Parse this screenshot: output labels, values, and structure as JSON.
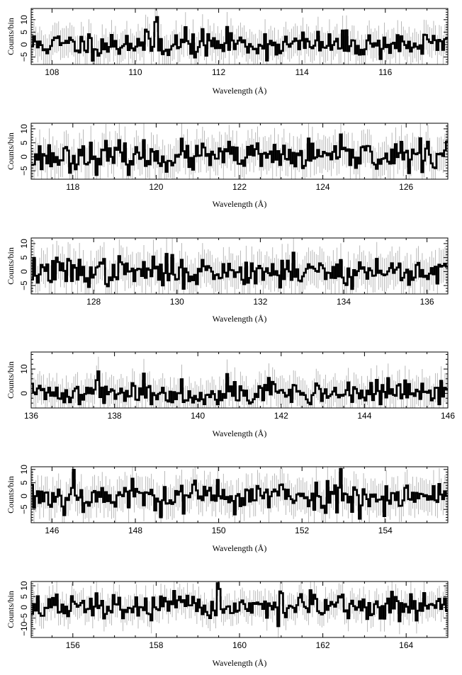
{
  "chart_data": [
    {
      "type": "line",
      "xlabel": "Wavelength (Å)",
      "ylabel": "Counts/bin",
      "xlim": [
        107.5,
        117.5
      ],
      "ylim": [
        -8,
        14.5
      ],
      "xticks": [
        108,
        110,
        112,
        114,
        116
      ],
      "yticks": [
        -5,
        0,
        5,
        10
      ],
      "ytick_labels": [
        "−5",
        "0",
        "5",
        "10"
      ],
      "seed": 11,
      "noise_sd": 2.6,
      "peaks": [
        [
          110.5,
          9
        ],
        [
          109.8,
          6
        ],
        [
          111.2,
          5
        ],
        [
          112.3,
          7
        ],
        [
          117.3,
          4
        ]
      ],
      "error_bar": 6
    },
    {
      "type": "line",
      "xlabel": "Wavelength (Å)",
      "ylabel": "Counts/bin",
      "xlim": [
        117,
        127
      ],
      "ylim": [
        -8,
        12
      ],
      "xticks": [
        118,
        120,
        122,
        124,
        126
      ],
      "yticks": [
        -5,
        0,
        5,
        10
      ],
      "ytick_labels": [
        "−5",
        "0",
        "5",
        "10"
      ],
      "seed": 23,
      "noise_sd": 2.6,
      "peaks": [
        [
          118.2,
          6
        ],
        [
          125.1,
          6
        ],
        [
          126.5,
          4
        ]
      ],
      "error_bar": 6
    },
    {
      "type": "line",
      "xlabel": "Wavelength (Å)",
      "ylabel": "Counts/bin",
      "xlim": [
        126.5,
        136.5
      ],
      "ylim": [
        -8,
        12
      ],
      "xticks": [
        128,
        130,
        132,
        134,
        136
      ],
      "yticks": [
        -5,
        0,
        5,
        10
      ],
      "ytick_labels": [
        "−5",
        "0",
        "5",
        "10"
      ],
      "seed": 37,
      "noise_sd": 2.6,
      "peaks": [
        [
          131.8,
          7
        ],
        [
          132.8,
          5
        ]
      ],
      "error_bar": 6
    },
    {
      "type": "line",
      "xlabel": "Wavelength (Å)",
      "ylabel": "Counts/bin",
      "xlim": [
        136,
        146
      ],
      "ylim": [
        -6,
        17
      ],
      "xticks": [
        136,
        138,
        140,
        142,
        144,
        146
      ],
      "yticks": [
        0,
        10
      ],
      "ytick_labels": [
        "0",
        "10"
      ],
      "seed": 41,
      "noise_sd": 2.4,
      "peaks": [
        [
          140.7,
          11
        ],
        [
          141.7,
          10
        ],
        [
          144.3,
          10
        ],
        [
          138.7,
          7
        ],
        [
          137.6,
          6
        ]
      ],
      "error_bar": 6
    },
    {
      "type": "line",
      "xlabel": "Wavelength (Å)",
      "ylabel": "Counts/bin",
      "xlim": [
        145.5,
        155.5
      ],
      "ylim": [
        -10,
        11
      ],
      "xticks": [
        146,
        148,
        150,
        152,
        154
      ],
      "yticks": [
        -5,
        0,
        5,
        10
      ],
      "ytick_labels": [
        "−5",
        "0",
        "5",
        "10"
      ],
      "seed": 53,
      "noise_sd": 3.0,
      "peaks": [
        [
          146.5,
          5
        ],
        [
          152.9,
          5
        ]
      ],
      "error_bar": 6
    },
    {
      "type": "line",
      "xlabel": "Wavelength (Å)",
      "ylabel": "Counts/bin",
      "xlim": [
        155,
        165
      ],
      "ylim": [
        -14,
        12
      ],
      "xticks": [
        156,
        158,
        160,
        162,
        164
      ],
      "yticks": [
        -10,
        -5,
        0,
        5,
        10
      ],
      "ytick_labels": [
        "−10",
        "−5",
        "0",
        "5",
        "10"
      ],
      "seed": 67,
      "noise_sd": 3.0,
      "peaks": [
        [
          159.5,
          8
        ],
        [
          161,
          7
        ],
        [
          164.6,
          6
        ]
      ],
      "error_bar": 6
    }
  ]
}
